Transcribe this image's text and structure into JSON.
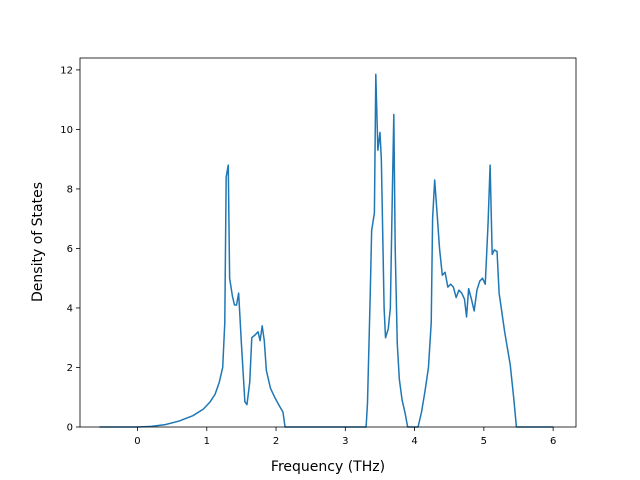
{
  "chart_data": {
    "type": "line",
    "title": "",
    "xlabel": "Frequency (THz)",
    "ylabel": "Density of States",
    "xlim": [
      -0.83,
      6.33
    ],
    "ylim": [
      0,
      12.4
    ],
    "xticks": [
      0,
      1,
      2,
      3,
      4,
      5,
      6
    ],
    "yticks": [
      0,
      2,
      4,
      6,
      8,
      10,
      12
    ],
    "grid": false,
    "legend": "none",
    "series": [
      {
        "color": "#1f77b4",
        "points": [
          [
            -0.55,
            0.0
          ],
          [
            0.0,
            0.0
          ],
          [
            0.2,
            0.02
          ],
          [
            0.4,
            0.08
          ],
          [
            0.6,
            0.2
          ],
          [
            0.8,
            0.38
          ],
          [
            0.95,
            0.6
          ],
          [
            1.05,
            0.85
          ],
          [
            1.12,
            1.1
          ],
          [
            1.18,
            1.5
          ],
          [
            1.23,
            2.0
          ],
          [
            1.26,
            3.5
          ],
          [
            1.28,
            8.4
          ],
          [
            1.31,
            8.8
          ],
          [
            1.33,
            5.0
          ],
          [
            1.37,
            4.4
          ],
          [
            1.4,
            4.1
          ],
          [
            1.43,
            4.1
          ],
          [
            1.46,
            4.5
          ],
          [
            1.5,
            2.8
          ],
          [
            1.55,
            0.85
          ],
          [
            1.58,
            0.75
          ],
          [
            1.62,
            1.5
          ],
          [
            1.65,
            3.0
          ],
          [
            1.7,
            3.1
          ],
          [
            1.74,
            3.2
          ],
          [
            1.77,
            2.9
          ],
          [
            1.8,
            3.4
          ],
          [
            1.83,
            2.9
          ],
          [
            1.86,
            1.9
          ],
          [
            1.92,
            1.3
          ],
          [
            1.98,
            1.0
          ],
          [
            2.05,
            0.7
          ],
          [
            2.1,
            0.5
          ],
          [
            2.13,
            0.0
          ],
          [
            3.3,
            0.0
          ],
          [
            3.32,
            0.8
          ],
          [
            3.36,
            4.5
          ],
          [
            3.38,
            6.6
          ],
          [
            3.42,
            7.2
          ],
          [
            3.44,
            11.85
          ],
          [
            3.47,
            9.3
          ],
          [
            3.5,
            9.9
          ],
          [
            3.52,
            9.0
          ],
          [
            3.56,
            4.0
          ],
          [
            3.58,
            3.0
          ],
          [
            3.62,
            3.3
          ],
          [
            3.65,
            4.0
          ],
          [
            3.68,
            8.0
          ],
          [
            3.7,
            10.5
          ],
          [
            3.72,
            6.0
          ],
          [
            3.75,
            2.8
          ],
          [
            3.78,
            1.6
          ],
          [
            3.82,
            0.9
          ],
          [
            3.86,
            0.5
          ],
          [
            3.9,
            0.0
          ],
          [
            4.05,
            0.0
          ],
          [
            4.1,
            0.5
          ],
          [
            4.15,
            1.2
          ],
          [
            4.2,
            2.0
          ],
          [
            4.24,
            3.5
          ],
          [
            4.26,
            7.0
          ],
          [
            4.29,
            8.3
          ],
          [
            4.33,
            7.0
          ],
          [
            4.36,
            6.0
          ],
          [
            4.4,
            5.1
          ],
          [
            4.44,
            5.2
          ],
          [
            4.48,
            4.7
          ],
          [
            4.52,
            4.8
          ],
          [
            4.56,
            4.7
          ],
          [
            4.6,
            4.35
          ],
          [
            4.64,
            4.6
          ],
          [
            4.68,
            4.5
          ],
          [
            4.72,
            4.3
          ],
          [
            4.75,
            3.7
          ],
          [
            4.78,
            4.65
          ],
          [
            4.82,
            4.3
          ],
          [
            4.86,
            3.9
          ],
          [
            4.9,
            4.6
          ],
          [
            4.94,
            4.9
          ],
          [
            4.98,
            5.0
          ],
          [
            5.02,
            4.8
          ],
          [
            5.06,
            6.8
          ],
          [
            5.09,
            8.8
          ],
          [
            5.12,
            5.8
          ],
          [
            5.15,
            5.95
          ],
          [
            5.19,
            5.9
          ],
          [
            5.22,
            4.5
          ],
          [
            5.3,
            3.2
          ],
          [
            5.38,
            2.1
          ],
          [
            5.43,
            1.0
          ],
          [
            5.47,
            0.0
          ],
          [
            6.0,
            0.0
          ]
        ]
      }
    ]
  }
}
